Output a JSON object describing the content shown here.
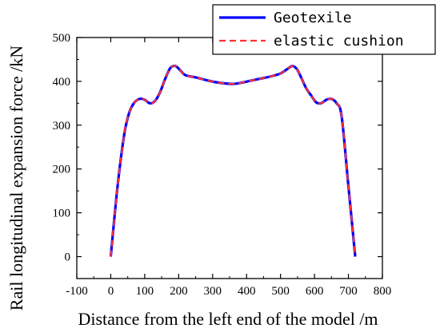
{
  "chart_data": {
    "type": "line",
    "title": "",
    "xlabel": "Distance from the left end of the model /m",
    "ylabel": "Rail longitudinal expansion force /kN",
    "xlim": [
      -100,
      800
    ],
    "ylim": [
      -50,
      500
    ],
    "xticks": [
      -100,
      0,
      100,
      200,
      300,
      400,
      500,
      600,
      700,
      800
    ],
    "yticks": [
      0,
      100,
      200,
      300,
      400,
      500
    ],
    "xtick_labels": [
      "-100",
      "0",
      "100",
      "200",
      "300",
      "400",
      "500",
      "600",
      "700",
      "800"
    ],
    "ytick_labels": [
      "0",
      "100",
      "200",
      "300",
      "400",
      "500"
    ],
    "grid": false,
    "legend_position": "top-right",
    "series": [
      {
        "name": "Geotexile",
        "color": "#0000ff",
        "style": "solid",
        "x": [
          0,
          20,
          40,
          55,
          70,
          85,
          100,
          115,
          130,
          145,
          160,
          175,
          190,
          205,
          220,
          250,
          280,
          310,
          340,
          360,
          380,
          410,
          440,
          470,
          500,
          520,
          535,
          548,
          560,
          575,
          590,
          605,
          620,
          635,
          650,
          665,
          680,
          700,
          720
        ],
        "y": [
          0,
          160,
          280,
          330,
          352,
          360,
          358,
          350,
          355,
          375,
          405,
          430,
          435,
          425,
          414,
          409,
          403,
          398,
          395,
          394,
          396,
          401,
          406,
          411,
          418,
          428,
          435,
          428,
          410,
          385,
          368,
          352,
          350,
          358,
          360,
          350,
          320,
          160,
          0
        ]
      },
      {
        "name": "elastic cushion",
        "color": "#ff3333",
        "style": "dashed",
        "x": [
          0,
          20,
          40,
          55,
          70,
          85,
          100,
          115,
          130,
          145,
          160,
          175,
          190,
          205,
          220,
          250,
          280,
          310,
          340,
          360,
          380,
          410,
          440,
          470,
          500,
          520,
          535,
          548,
          560,
          575,
          590,
          605,
          620,
          635,
          650,
          665,
          680,
          700,
          720
        ],
        "y": [
          0,
          160,
          280,
          330,
          352,
          360,
          358,
          350,
          355,
          375,
          405,
          430,
          435,
          425,
          414,
          409,
          403,
          398,
          395,
          394,
          396,
          401,
          406,
          411,
          418,
          428,
          435,
          428,
          410,
          385,
          368,
          352,
          350,
          358,
          360,
          350,
          320,
          160,
          0
        ]
      }
    ]
  }
}
